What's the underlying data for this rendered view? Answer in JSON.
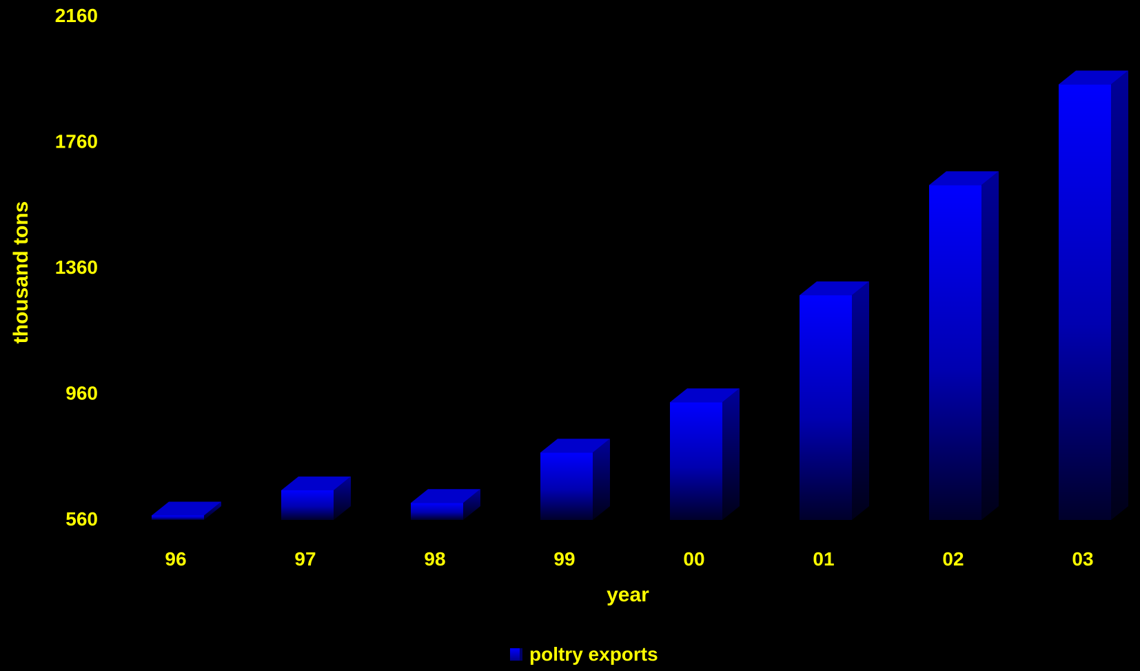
{
  "chart_data": {
    "type": "bar",
    "title": "",
    "xlabel": "year",
    "ylabel": "thousand tons",
    "categories": [
      "96",
      "97",
      "98",
      "99",
      "00",
      "01",
      "02",
      "03"
    ],
    "series": [
      {
        "name": "poltry exports",
        "values": [
          570,
          650,
          610,
          770,
          930,
          1270,
          1620,
          1940
        ]
      }
    ],
    "ylim": [
      560,
      2160
    ],
    "yticks": [
      "560",
      "960",
      "1360",
      "1760",
      "2160"
    ],
    "grid": false,
    "legend_position": "bottom",
    "three_d": true,
    "colors": {
      "background": "#000000",
      "text": "#ffff00",
      "bar_front_top": "#0000ff",
      "bar_front_bottom": "#00003a",
      "bar_side": "#000080",
      "bar_top": "#0000cc"
    }
  }
}
